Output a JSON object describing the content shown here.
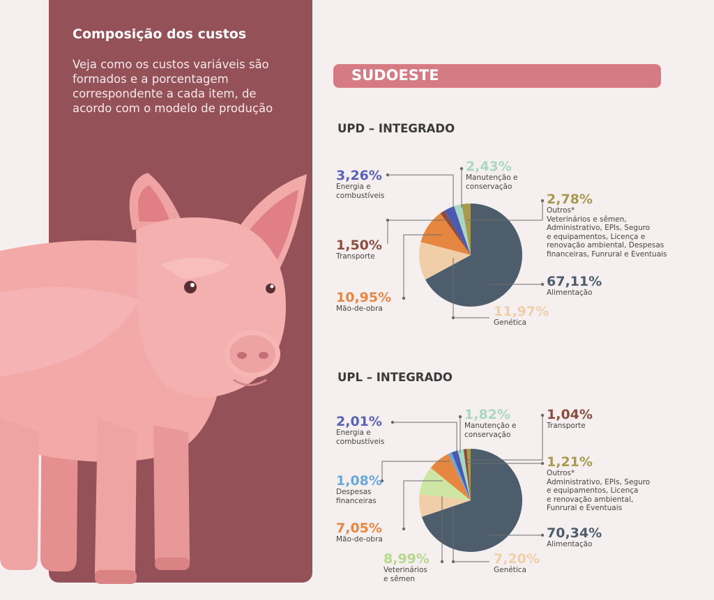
{
  "panel": {
    "title": "Composição dos custos",
    "intro": "Veja como os custos variáveis são formados e a porcentagem correspondente a cada item, de acordo com o modelo de produção"
  },
  "region": {
    "label": "SUDOESTE"
  },
  "colors": {
    "panel": "#945157",
    "region_bar": "#d47b83",
    "background": "#f5eff0",
    "pig_body": "#f2a9a8",
    "pig_shadow": "#e58f90"
  },
  "chart_data": [
    {
      "type": "pie",
      "title": "UPD – INTEGRADO",
      "slices": [
        {
          "key": "alimentacao",
          "name": "Alimentação",
          "value": 67.11,
          "label": "67,11%",
          "color": "#4d5d6c",
          "pct_color": "#4d5d6c"
        },
        {
          "key": "genetica",
          "name": "Genética",
          "value": 11.97,
          "label": "11,97%",
          "color": "#f0cfa8",
          "pct_color": "#f0cfa8"
        },
        {
          "key": "maodeobra",
          "name": "Mão-de-obra",
          "value": 10.95,
          "label": "10,95%",
          "color": "#e58740",
          "pct_color": "#e58740"
        },
        {
          "key": "transporte",
          "name": "Transporte",
          "value": 1.5,
          "label": "1,50%",
          "color": "#8c4d3f",
          "pct_color": "#8c4d3f"
        },
        {
          "key": "energia",
          "name": "Energia e\ncombustíveis",
          "value": 3.26,
          "label": "3,26%",
          "color": "#4a5ab0",
          "pct_color": "#5a62b5"
        },
        {
          "key": "manutencao",
          "name": "Manutenção e\nconservação",
          "value": 2.43,
          "label": "2,43%",
          "color": "#a8d8c4",
          "pct_color": "#a8d8c4"
        },
        {
          "key": "outros",
          "name": "Outros*\nVeterinários e sêmen,\nAdministrativo, EPIs, Seguro\ne equipamentos, Licença e\nrenovação ambiental, Despesas\nfinanceiras, Funrural e Eventuais",
          "value": 2.78,
          "label": "2,78%",
          "color": "#a89a50",
          "pct_color": "#a89a50"
        }
      ]
    },
    {
      "type": "pie",
      "title": "UPL – INTEGRADO",
      "slices": [
        {
          "key": "alimentacao",
          "name": "Alimentação",
          "value": 70.34,
          "label": "70,34%",
          "color": "#4d5d6c",
          "pct_color": "#4d5d6c"
        },
        {
          "key": "genetica",
          "name": "Genética",
          "value": 7.2,
          "label": "7,20%",
          "color": "#f0cfa8",
          "pct_color": "#f0cfa8"
        },
        {
          "key": "veterinarios",
          "name": "Veterinários\ne sêmen",
          "value": 8.99,
          "label": "8,99%",
          "color": "#cde6a4",
          "pct_color": "#b5d88a"
        },
        {
          "key": "maodeobra",
          "name": "Mão-de-obra",
          "value": 7.05,
          "label": "7,05%",
          "color": "#e58740",
          "pct_color": "#e58740"
        },
        {
          "key": "despesas",
          "name": "Despesas\nfinanceiras",
          "value": 1.08,
          "label": "1,08%",
          "color": "#6ba8d8",
          "pct_color": "#6ba8d8"
        },
        {
          "key": "energia",
          "name": "Energia e\ncombustíveis",
          "value": 2.01,
          "label": "2,01%",
          "color": "#4a5ab0",
          "pct_color": "#5a62b5"
        },
        {
          "key": "manutencao",
          "name": "Manutenção e\nconservação",
          "value": 1.82,
          "label": "1,82%",
          "color": "#a8d8c4",
          "pct_color": "#a8d8c4"
        },
        {
          "key": "transporte",
          "name": "Transporte",
          "value": 1.04,
          "label": "1,04%",
          "color": "#8c4d3f",
          "pct_color": "#8c4d3f"
        },
        {
          "key": "outros",
          "name": "Outros*\nAdministrativo, EPIs, Seguro\ne equipamentos, Licença\ne renovação ambiental,\nFunrural e Eventuais",
          "value": 1.21,
          "label": "1,21%",
          "color": "#a89a50",
          "pct_color": "#a89a50"
        }
      ]
    }
  ]
}
